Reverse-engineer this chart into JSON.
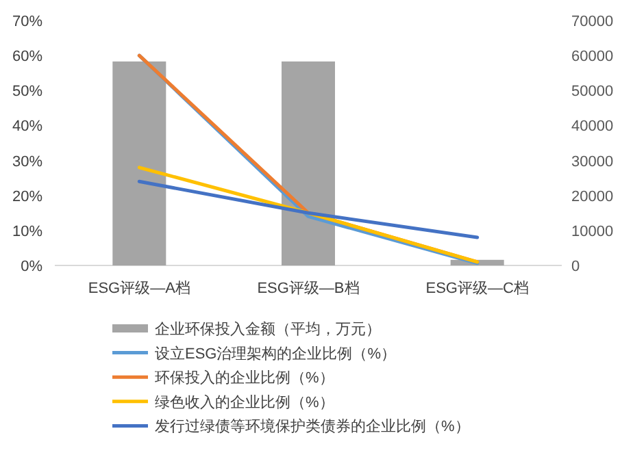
{
  "chart_data": {
    "type": "bar",
    "categories": [
      "ESG评级—A档",
      "ESG评级—B档",
      "ESG评级—C档"
    ],
    "series": [
      {
        "name": "企业环保投入金额（平均，万元）",
        "axis": "y2",
        "color": "#a5a5a5",
        "values": [
          58300,
          58300,
          1600
        ]
      },
      {
        "name": "设立ESG治理架构的企业比例（%）",
        "type": "line",
        "axis": "y",
        "color": "#5b9bd5",
        "values": [
          60,
          14,
          0.6
        ]
      },
      {
        "name": "环保投入的企业比例（%）",
        "type": "line",
        "axis": "y",
        "color": "#ed7d31",
        "values": [
          60,
          15,
          1
        ]
      },
      {
        "name": "绿色收入的企业比例（%）",
        "type": "line",
        "axis": "y",
        "color": "#ffc000",
        "values": [
          28,
          15,
          1
        ]
      },
      {
        "name": "发行过绿债等环境保护类债券的企业比例（%）",
        "type": "line",
        "axis": "y",
        "color": "#4472c4",
        "values": [
          24,
          15,
          8
        ]
      }
    ],
    "ylim": [
      0,
      70
    ],
    "yticks": [
      {
        "value": 0,
        "label": "0%"
      },
      {
        "value": 10,
        "label": "10%"
      },
      {
        "value": 20,
        "label": "20%"
      },
      {
        "value": 30,
        "label": "30%"
      },
      {
        "value": 40,
        "label": "40%"
      },
      {
        "value": 50,
        "label": "50%"
      },
      {
        "value": 60,
        "label": "60%"
      },
      {
        "value": 70,
        "label": "70%"
      }
    ],
    "y2lim": [
      0,
      70000
    ],
    "y2ticks": [
      0,
      10000,
      20000,
      30000,
      40000,
      50000,
      60000,
      70000
    ],
    "legend": "bottom",
    "grid": false
  }
}
